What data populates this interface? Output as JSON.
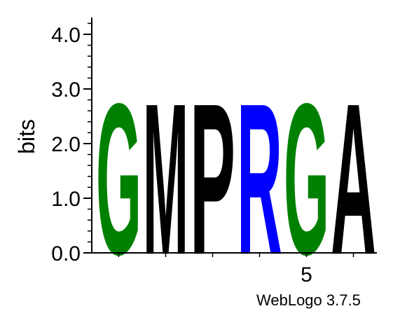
{
  "chart_data": {
    "type": "sequence-logo",
    "ylabel": "bits",
    "ylim": [
      0,
      4.3
    ],
    "y_ticks": [
      {
        "value": 0,
        "label": "0.0"
      },
      {
        "value": 1,
        "label": "1.0"
      },
      {
        "value": 2,
        "label": "2.0"
      },
      {
        "value": 3,
        "label": "3.0"
      },
      {
        "value": 4,
        "label": "4.0"
      }
    ],
    "y_minor_step": 0.2,
    "x_ticks": [
      {
        "value": 5,
        "label": "5"
      }
    ],
    "positions": [
      {
        "pos": 1,
        "letter": "G",
        "bits": 2.7,
        "color": "#008000"
      },
      {
        "pos": 2,
        "letter": "M",
        "bits": 2.7,
        "color": "#000000"
      },
      {
        "pos": 3,
        "letter": "P",
        "bits": 2.7,
        "color": "#000000"
      },
      {
        "pos": 4,
        "letter": "R",
        "bits": 2.7,
        "color": "#0000ff"
      },
      {
        "pos": 5,
        "letter": "G",
        "bits": 2.7,
        "color": "#008000"
      },
      {
        "pos": 6,
        "letter": "A",
        "bits": 2.7,
        "color": "#000000"
      }
    ]
  },
  "footer": "WebLogo 3.7.5"
}
